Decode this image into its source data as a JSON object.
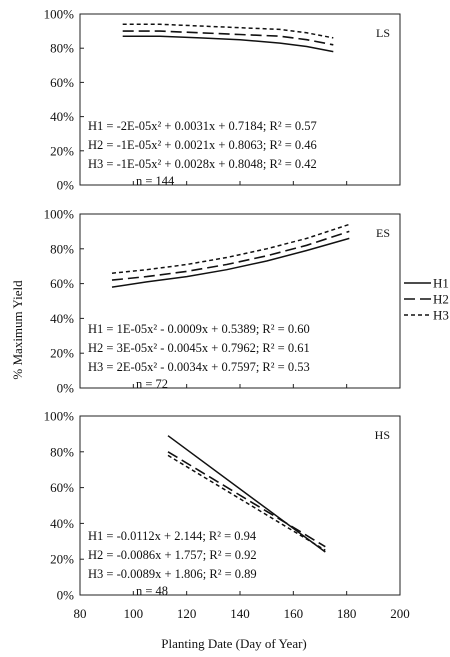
{
  "figure": {
    "ylabel": "% Maximum Yield",
    "xlabel": "Planting Date (Day of Year)",
    "xticks": [
      "80",
      "100",
      "120",
      "140",
      "160",
      "180",
      "200"
    ],
    "yticks": [
      "0%",
      "20%",
      "40%",
      "60%",
      "80%",
      "100%"
    ],
    "legend": [
      "H1",
      "H2",
      "H3"
    ],
    "series_styles": {
      "H1": "solid",
      "H2": "long-dash",
      "H3": "short-dash"
    }
  },
  "chart_data": [
    {
      "type": "line",
      "panel": "LS",
      "xlim": [
        80,
        200
      ],
      "ylim": [
        0,
        100
      ],
      "equations": [
        "H1 = -2E-05x² + 0.0031x + 0.7184; R² = 0.57",
        "H2 = -1E-05x² + 0.0021x + 0.8063; R² = 0.46",
        "H3 = -1E-05x² + 0.0028x + 0.8048; R² = 0.42"
      ],
      "n_label": "n = 144",
      "series": [
        {
          "name": "H1",
          "x": [
            96,
            110,
            125,
            140,
            155,
            165,
            175
          ],
          "y": [
            87,
            87,
            86,
            85,
            83,
            81,
            78
          ]
        },
        {
          "name": "H2",
          "x": [
            96,
            110,
            125,
            140,
            155,
            165,
            175
          ],
          "y": [
            90,
            90,
            89,
            88,
            87,
            85,
            82
          ]
        },
        {
          "name": "H3",
          "x": [
            96,
            110,
            125,
            140,
            155,
            165,
            175
          ],
          "y": [
            94,
            94,
            93,
            92,
            91,
            89,
            86
          ]
        }
      ]
    },
    {
      "type": "line",
      "panel": "ES",
      "xlim": [
        80,
        200
      ],
      "ylim": [
        0,
        100
      ],
      "equations": [
        "H1 = 1E-05x² - 0.0009x + 0.5389; R² = 0.60",
        "H2 = 3E-05x² - 0.0045x + 0.7962; R² = 0.61",
        "H3 = 2E-05x² - 0.0034x + 0.7597; R² = 0.53"
      ],
      "n_label": "n = 72",
      "series": [
        {
          "name": "H1",
          "x": [
            92,
            105,
            120,
            135,
            150,
            165,
            181
          ],
          "y": [
            58,
            61,
            64,
            68,
            73,
            79,
            86
          ]
        },
        {
          "name": "H2",
          "x": [
            92,
            105,
            120,
            135,
            150,
            165,
            181
          ],
          "y": [
            62,
            64,
            67,
            71,
            76,
            82,
            90
          ]
        },
        {
          "name": "H3",
          "x": [
            92,
            105,
            120,
            135,
            150,
            165,
            181
          ],
          "y": [
            66,
            68,
            71,
            75,
            80,
            86,
            94
          ]
        }
      ]
    },
    {
      "type": "line",
      "panel": "HS",
      "xlim": [
        80,
        200
      ],
      "ylim": [
        0,
        100
      ],
      "equations": [
        "H1 = -0.0112x + 2.144; R² = 0.94",
        "H2 = -0.0086x + 1.757; R² = 0.92",
        "H3 = -0.0089x + 1.806; R² = 0.89"
      ],
      "n_label": "n = 48",
      "series": [
        {
          "name": "H1",
          "x": [
            113,
            172
          ],
          "y": [
            89,
            24
          ]
        },
        {
          "name": "H2",
          "x": [
            113,
            172
          ],
          "y": [
            80,
            27
          ]
        },
        {
          "name": "H3",
          "x": [
            113,
            172
          ],
          "y": [
            78,
            25
          ]
        }
      ]
    }
  ]
}
